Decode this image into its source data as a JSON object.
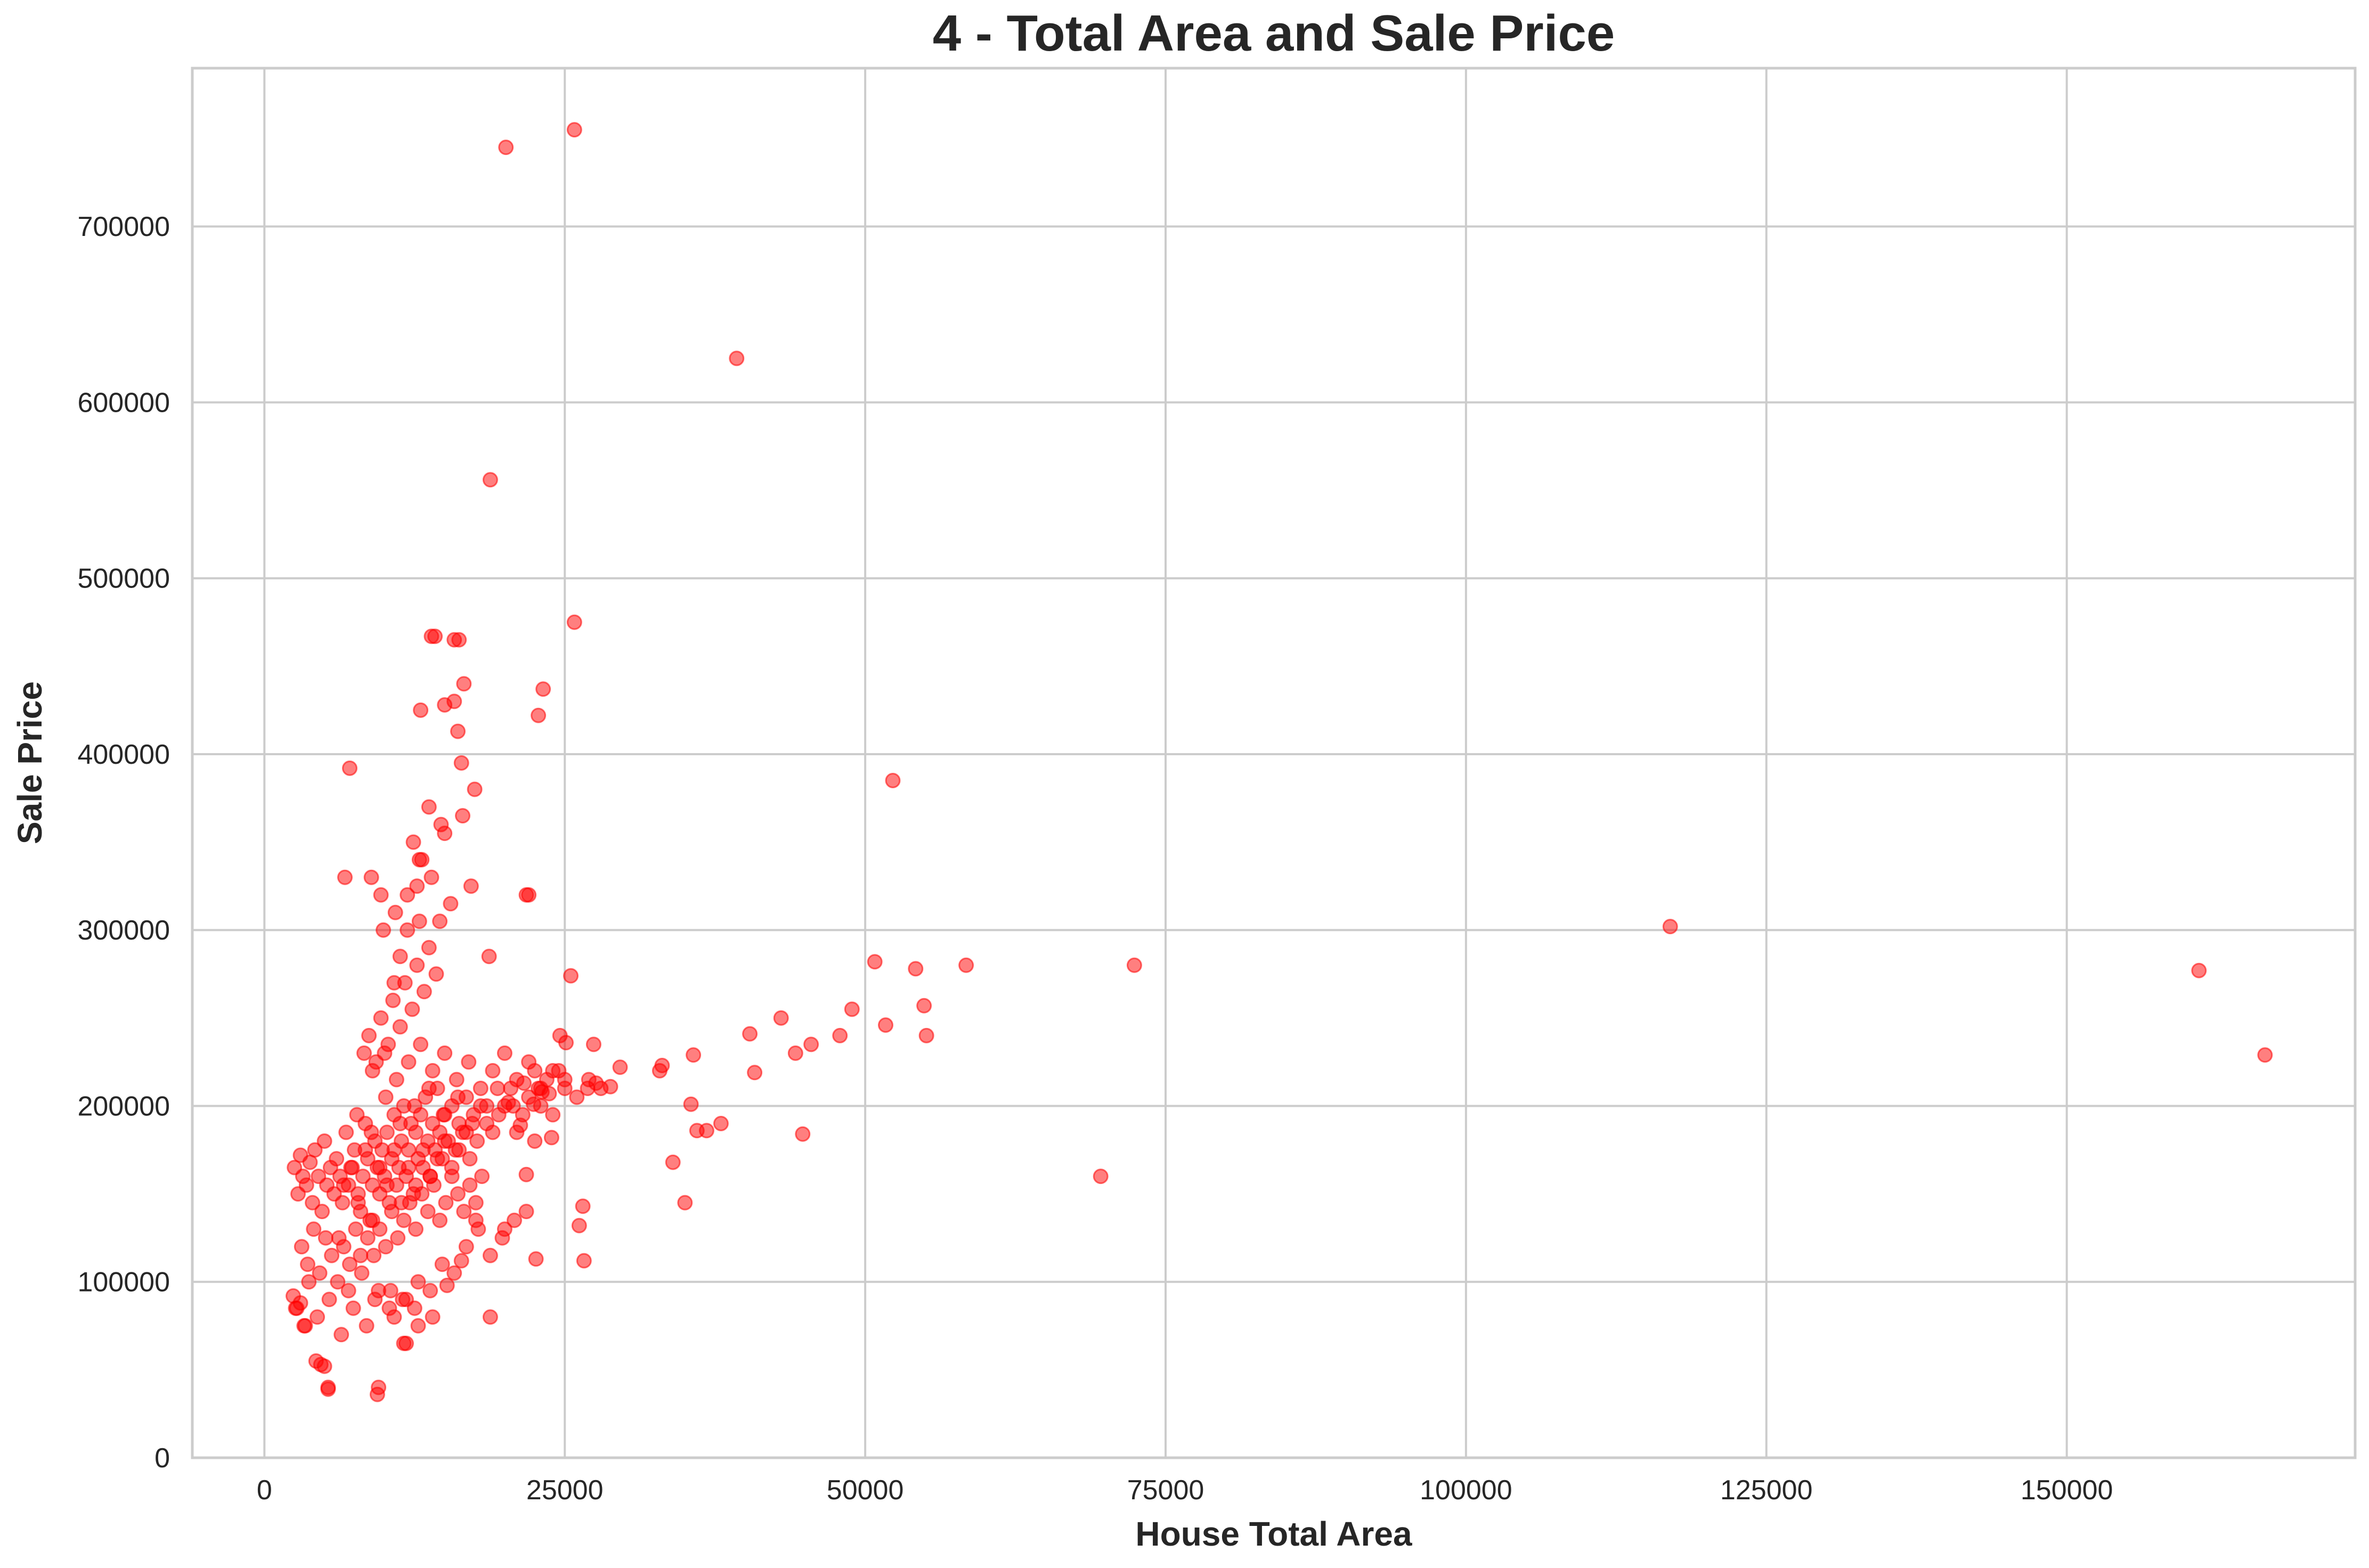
{
  "chart_data": {
    "type": "scatter",
    "title": "4 - Total Area and Sale Price",
    "xlabel": "House Total Area",
    "ylabel": "Sale Price",
    "xlim": [
      -6000,
      174000
    ],
    "ylim": [
      0,
      790000
    ],
    "xticks": [
      0,
      25000,
      50000,
      75000,
      100000,
      125000,
      150000
    ],
    "xtick_labels": [
      "0",
      "25000",
      "50000",
      "75000",
      "100000",
      "125000",
      "150000"
    ],
    "yticks": [
      0,
      100000,
      200000,
      300000,
      400000,
      500000,
      600000,
      700000
    ],
    "ytick_labels": [
      "0",
      "100000",
      "200000",
      "300000",
      "400000",
      "500000",
      "600000",
      "700000"
    ],
    "grid": true,
    "marker_color": "#ff0000",
    "marker_alpha": 0.5,
    "points_x": [
      2500,
      2800,
      3000,
      3200,
      3500,
      3800,
      4000,
      4200,
      4500,
      4800,
      5000,
      5200,
      5500,
      5800,
      6000,
      6300,
      6500,
      6800,
      7000,
      7300,
      7500,
      7800,
      8000,
      8200,
      8400,
      8600,
      8800,
      9000,
      9200,
      9400,
      9600,
      9800,
      10000,
      10200,
      10400,
      10600,
      10800,
      11000,
      11200,
      11400,
      11600,
      11800,
      12000,
      12200,
      12400,
      12600,
      12800,
      13000,
      13200,
      13400,
      13600,
      13800,
      14000,
      14200,
      14400,
      14600,
      14800,
      15000,
      15300,
      15600,
      15900,
      16200,
      16500,
      16800,
      17100,
      17400,
      17700,
      18000,
      18500,
      19000,
      19500,
      20000,
      20500,
      21000,
      21500,
      22000,
      22500,
      23000,
      23500,
      24000,
      24500,
      25000,
      26000,
      27000,
      28000,
      3100,
      3600,
      4100,
      4600,
      5100,
      5600,
      6100,
      6600,
      7100,
      7600,
      8100,
      8600,
      9100,
      9600,
      10100,
      10600,
      11100,
      11600,
      12100,
      12600,
      13100,
      13600,
      14100,
      14600,
      15100,
      15600,
      16100,
      16600,
      17100,
      17600,
      18100,
      8300,
      8700,
      9300,
      9700,
      10300,
      10700,
      11300,
      11700,
      12300,
      12700,
      13300,
      13700,
      14300,
      9900,
      10900,
      11900,
      12900,
      13900,
      10500,
      11500,
      12500,
      2600,
      3300,
      4400,
      5400,
      6400,
      7400,
      8500,
      9500,
      10800,
      11800,
      12800,
      13800,
      14800,
      15800,
      16800,
      17800,
      18800,
      19800,
      20800,
      21800,
      22800,
      9000,
      10000,
      11000,
      12000,
      13000,
      14000,
      15000,
      16000,
      17000,
      18000,
      19000,
      20000,
      21000,
      22000,
      23000,
      24000,
      7700,
      8900,
      10100,
      11300,
      12500,
      13700,
      14900,
      16100,
      17300,
      18500,
      6600,
      7200,
      7800,
      8400,
      9000,
      9600,
      10200,
      10800,
      11400,
      12000,
      12600,
      13200,
      13800,
      14400,
      15000,
      15600,
      16200,
      16800,
      2400,
      2700,
      3000,
      3400,
      3700,
      4300,
      5300,
      6200,
      7000,
      8000,
      9200,
      10400,
      11600,
      12800,
      14000,
      15200,
      16400,
      17600,
      18800,
      20000,
      12900,
      14700,
      16400,
      17500,
      13000,
      15000,
      15800,
      16600,
      14200,
      16200,
      15000,
      16500,
      13700,
      12400,
      10800,
      11300,
      11900,
      9700,
      8900,
      13100,
      12700,
      14600,
      15500,
      17200,
      18700,
      22000,
      23200,
      22800,
      5000,
      5300,
      4700,
      9400,
      9500,
      11800,
      7100,
      6700,
      16100,
      20700,
      21600,
      22500,
      23700,
      25100,
      28800,
      29600,
      24600,
      26900,
      27600,
      19400,
      20300,
      21300,
      22400,
      23100,
      25000,
      25500,
      21800,
      23900,
      27400,
      33100,
      32900,
      35500,
      35700,
      40400,
      40800,
      43000,
      44200,
      45500,
      47900,
      48900,
      50800,
      51700,
      54200,
      54900,
      55100,
      58400,
      36000,
      36800,
      38000,
      34000,
      44800,
      26200,
      26500,
      26600,
      22600,
      21800,
      35000,
      52300,
      69600,
      72400,
      117000,
      161000,
      166500,
      20100,
      25800,
      39300,
      18800,
      25800,
      13900,
      15800
    ],
    "points_y": [
      165000,
      150000,
      172000,
      160000,
      155000,
      168000,
      145000,
      175000,
      160000,
      140000,
      180000,
      155000,
      165000,
      150000,
      170000,
      160000,
      145000,
      185000,
      155000,
      165000,
      175000,
      150000,
      140000,
      160000,
      190000,
      170000,
      135000,
      155000,
      180000,
      165000,
      150000,
      175000,
      160000,
      185000,
      145000,
      170000,
      195000,
      155000,
      165000,
      180000,
      200000,
      160000,
      175000,
      190000,
      150000,
      185000,
      170000,
      195000,
      165000,
      205000,
      180000,
      160000,
      190000,
      175000,
      210000,
      185000,
      170000,
      195000,
      180000,
      200000,
      175000,
      190000,
      185000,
      205000,
      170000,
      195000,
      180000,
      200000,
      190000,
      185000,
      195000,
      200000,
      210000,
      185000,
      195000,
      205000,
      180000,
      200000,
      215000,
      195000,
      220000,
      210000,
      205000,
      215000,
      210000,
      120000,
      110000,
      130000,
      105000,
      125000,
      115000,
      100000,
      120000,
      110000,
      130000,
      105000,
      125000,
      115000,
      130000,
      120000,
      140000,
      125000,
      135000,
      145000,
      130000,
      150000,
      140000,
      155000,
      135000,
      145000,
      160000,
      150000,
      140000,
      155000,
      145000,
      160000,
      230000,
      240000,
      225000,
      250000,
      235000,
      260000,
      245000,
      270000,
      255000,
      280000,
      265000,
      290000,
      275000,
      300000,
      310000,
      320000,
      305000,
      330000,
      95000,
      90000,
      85000,
      85000,
      75000,
      80000,
      90000,
      70000,
      85000,
      75000,
      95000,
      80000,
      90000,
      100000,
      95000,
      110000,
      105000,
      120000,
      130000,
      115000,
      125000,
      135000,
      140000,
      210000,
      220000,
      230000,
      215000,
      225000,
      235000,
      220000,
      230000,
      215000,
      225000,
      210000,
      220000,
      230000,
      215000,
      225000,
      210000,
      220000,
      195000,
      185000,
      205000,
      190000,
      200000,
      210000,
      195000,
      205000,
      190000,
      200000,
      155000,
      165000,
      145000,
      175000,
      135000,
      165000,
      155000,
      175000,
      145000,
      165000,
      155000,
      175000,
      160000,
      170000,
      180000,
      165000,
      175000,
      185000,
      92000,
      85000,
      88000,
      75000,
      100000,
      55000,
      40000,
      125000,
      95000,
      115000,
      90000,
      85000,
      65000,
      75000,
      80000,
      98000,
      112000,
      135000,
      80000,
      130000,
      340000,
      360000,
      395000,
      380000,
      425000,
      428000,
      430000,
      440000,
      467000,
      465000,
      355000,
      365000,
      370000,
      350000,
      270000,
      285000,
      300000,
      320000,
      330000,
      340000,
      325000,
      305000,
      315000,
      325000,
      285000,
      320000,
      437000,
      422000,
      52000,
      39000,
      53000,
      36000,
      40000,
      65000,
      392000,
      330000,
      413000,
      200000,
      213000,
      220000,
      207000,
      236000,
      211000,
      222000,
      240000,
      210000,
      213000,
      210000,
      202000,
      189000,
      201000,
      208000,
      215000,
      274000,
      161000,
      182000,
      235000,
      223000,
      220000,
      201000,
      229000,
      241000,
      219000,
      250000,
      230000,
      235000,
      240000,
      255000,
      282000,
      246000,
      278000,
      257000,
      240000,
      280000,
      186000,
      186000,
      190000,
      168000,
      184000,
      132000,
      143000,
      112000,
      113000,
      320000,
      145000,
      385000,
      160000,
      280000,
      302000,
      277000,
      229000,
      745000,
      755000,
      625000,
      556000,
      475000,
      467000,
      465000
    ]
  }
}
